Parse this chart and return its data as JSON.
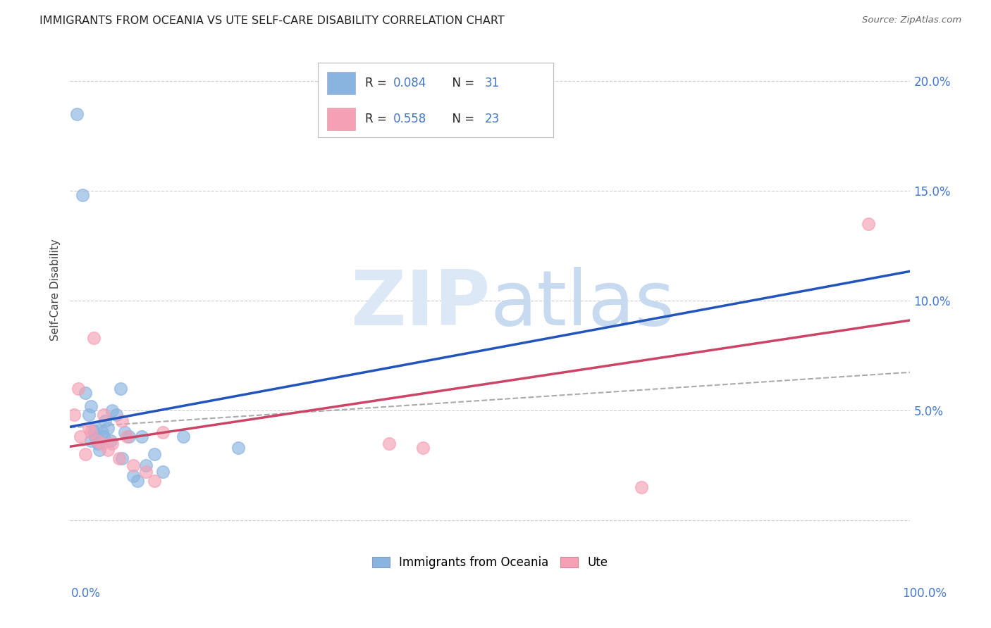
{
  "title": "IMMIGRANTS FROM OCEANIA VS UTE SELF-CARE DISABILITY CORRELATION CHART",
  "source": "Source: ZipAtlas.com",
  "ylabel": "Self-Care Disability",
  "ytick_values": [
    0.0,
    0.05,
    0.1,
    0.15,
    0.2
  ],
  "xlim": [
    0.0,
    1.0
  ],
  "ylim": [
    -0.005,
    0.215
  ],
  "R_oceania": 0.084,
  "N_oceania": 31,
  "R_ute": 0.558,
  "N_ute": 23,
  "color_oceania": "#8ab4e0",
  "color_ute": "#f5a0b5",
  "line_color_oceania": "#2255bb",
  "line_color_ute": "#cc4466",
  "line_color_combined": "#aaaaaa",
  "watermark_color": "#dce8f5",
  "background_color": "#ffffff",
  "grid_color": "#cccccc",
  "title_color": "#222222",
  "source_color": "#666666",
  "axis_label_color": "#4477cc",
  "oceania_x": [
    0.008,
    0.015,
    0.018,
    0.022,
    0.025,
    0.025,
    0.028,
    0.03,
    0.03,
    0.032,
    0.033,
    0.035,
    0.038,
    0.04,
    0.042,
    0.045,
    0.048,
    0.05,
    0.055,
    0.06,
    0.062,
    0.065,
    0.07,
    0.075,
    0.08,
    0.085,
    0.09,
    0.1,
    0.11,
    0.135,
    0.2
  ],
  "oceania_y": [
    0.185,
    0.148,
    0.058,
    0.048,
    0.052,
    0.036,
    0.04,
    0.042,
    0.038,
    0.038,
    0.035,
    0.032,
    0.04,
    0.038,
    0.045,
    0.042,
    0.036,
    0.05,
    0.048,
    0.06,
    0.028,
    0.04,
    0.038,
    0.02,
    0.018,
    0.038,
    0.025,
    0.03,
    0.022,
    0.038,
    0.033
  ],
  "ute_x": [
    0.005,
    0.01,
    0.012,
    0.018,
    0.022,
    0.025,
    0.028,
    0.032,
    0.038,
    0.04,
    0.045,
    0.05,
    0.058,
    0.062,
    0.068,
    0.075,
    0.09,
    0.1,
    0.11,
    0.38,
    0.42,
    0.68,
    0.95
  ],
  "ute_y": [
    0.048,
    0.06,
    0.038,
    0.03,
    0.042,
    0.04,
    0.083,
    0.036,
    0.035,
    0.048,
    0.032,
    0.035,
    0.028,
    0.045,
    0.038,
    0.025,
    0.022,
    0.018,
    0.04,
    0.035,
    0.033,
    0.015,
    0.135
  ]
}
